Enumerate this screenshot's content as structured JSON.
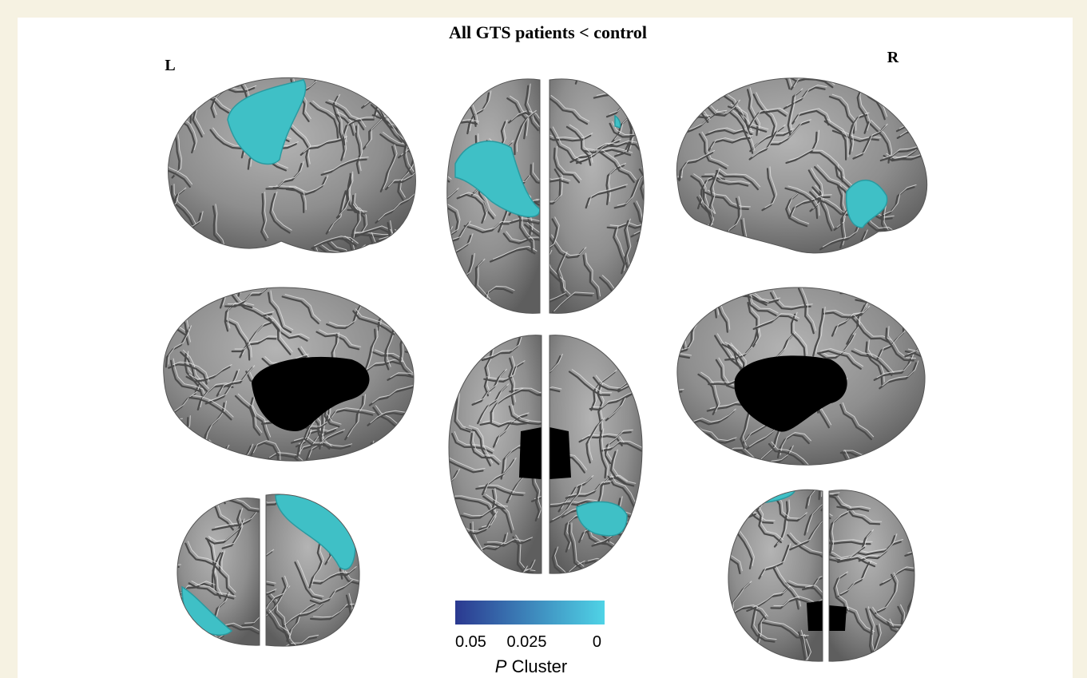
{
  "title": "All GTS patients < control",
  "left_label": "L",
  "right_label": "R",
  "colorbar": {
    "lim": [
      0.05,
      0
    ],
    "ticks": [
      0.05,
      0.025,
      0
    ],
    "colors": [
      "#2b3990",
      "#4fd3e6"
    ],
    "label_italic": "P",
    "label": "Cluster"
  }
}
